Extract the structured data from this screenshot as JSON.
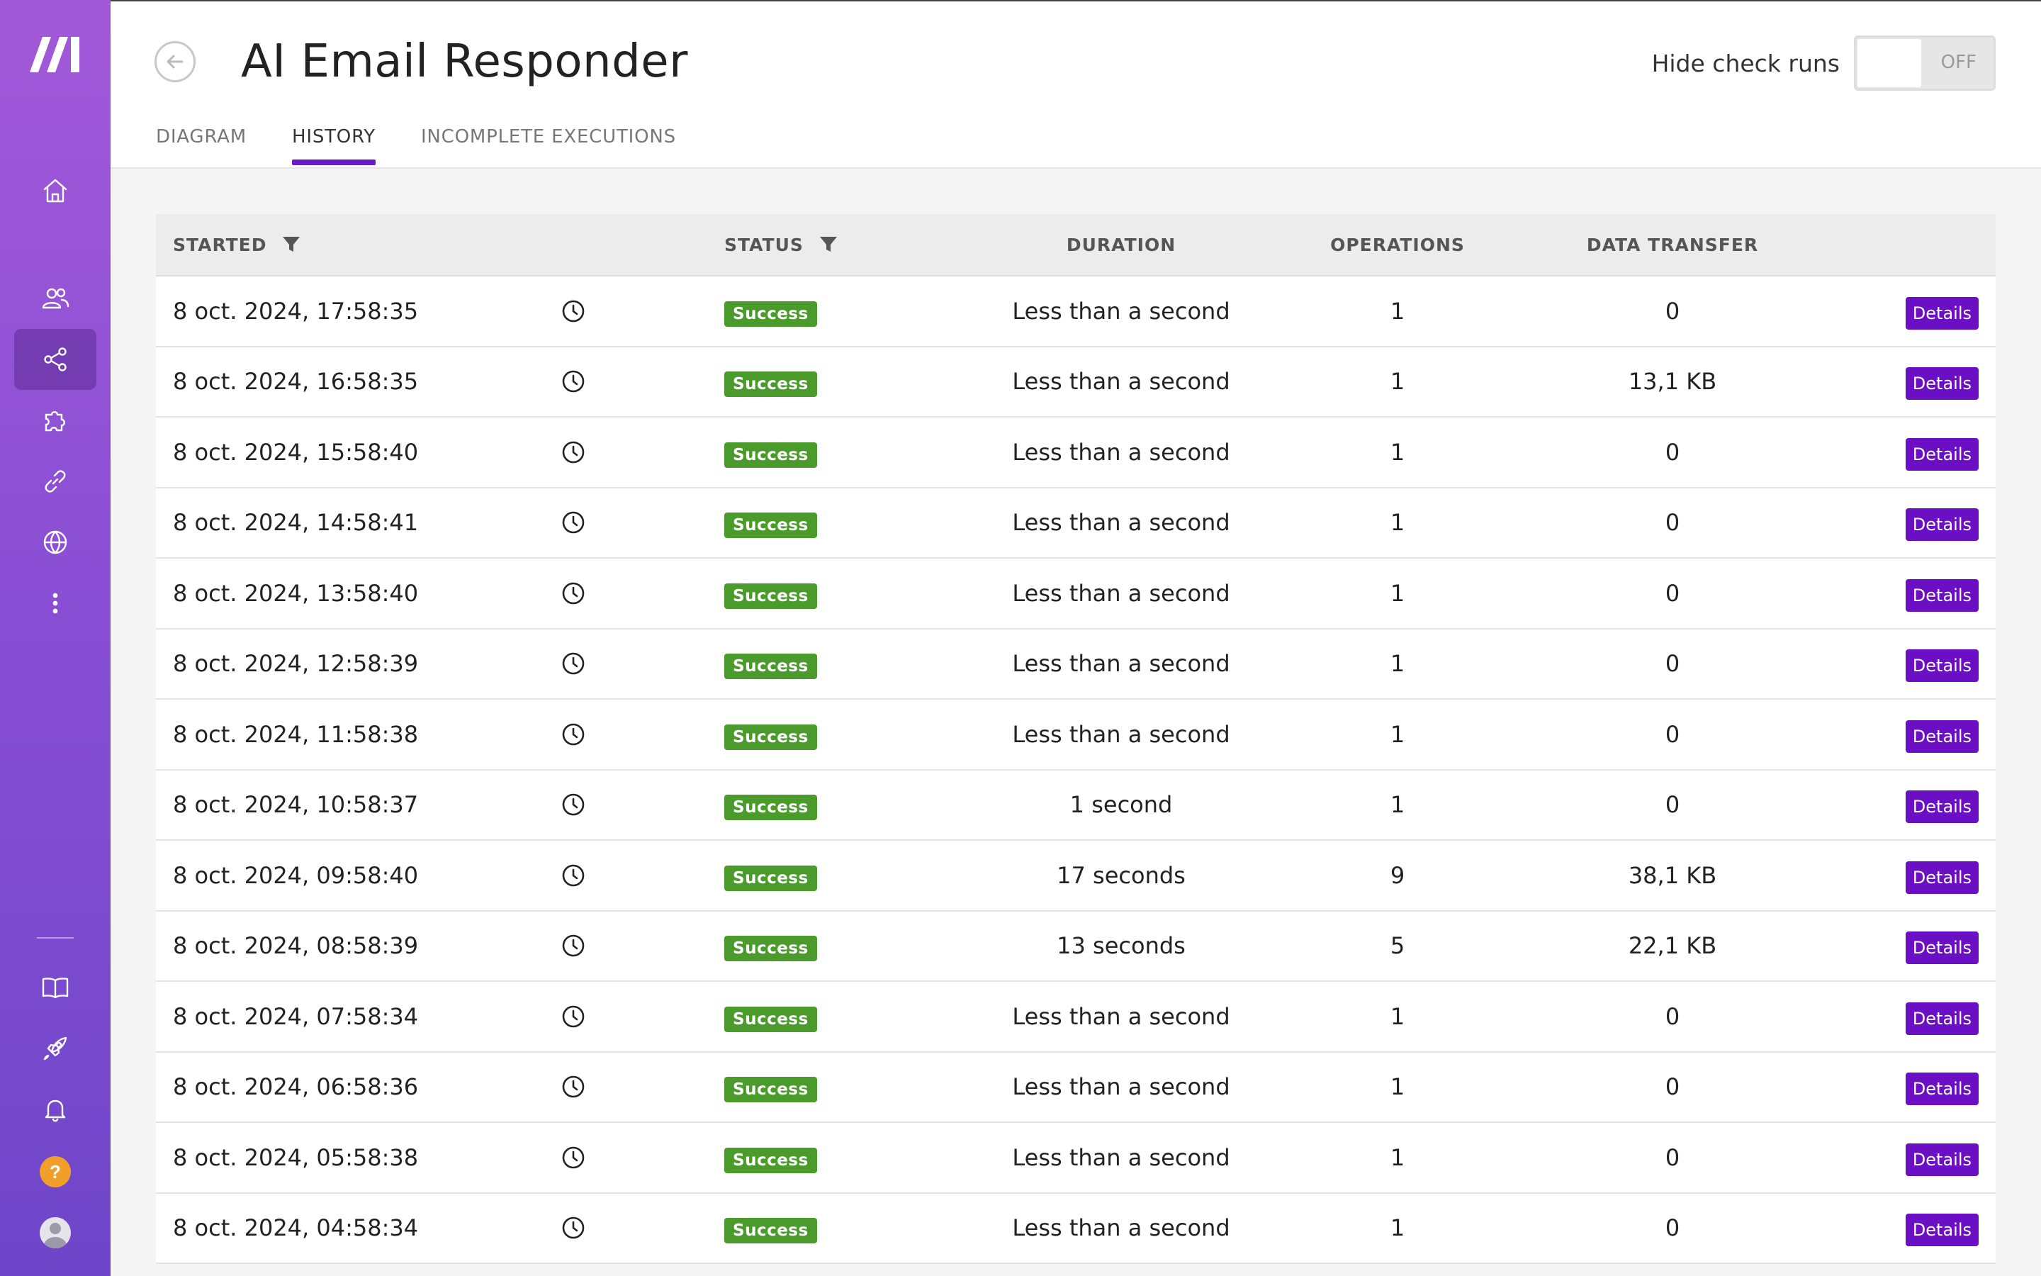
{
  "app": {
    "title": "AI Email Responder",
    "brand_color": "#6a0fc4",
    "success_color": "#4a9a2c"
  },
  "sidebar": {
    "items": [
      {
        "icon": "home-icon",
        "active": false
      },
      {
        "icon": "users-icon",
        "active": false
      },
      {
        "icon": "share-nodes-icon",
        "active": true
      },
      {
        "icon": "puzzle-icon",
        "active": false
      },
      {
        "icon": "link-icon",
        "active": false
      },
      {
        "icon": "globe-icon",
        "active": false
      },
      {
        "icon": "more-vertical-icon",
        "active": false
      },
      {
        "icon": "book-icon",
        "active": false
      },
      {
        "icon": "rocket-icon",
        "active": false
      },
      {
        "icon": "bell-icon",
        "active": false
      },
      {
        "icon": "help-icon",
        "active": false,
        "label": "?"
      },
      {
        "icon": "avatar-icon",
        "active": false
      }
    ]
  },
  "header": {
    "hide_check_runs_label": "Hide check runs",
    "toggle_state": "OFF",
    "tabs": [
      {
        "label": "DIAGRAM",
        "active": false
      },
      {
        "label": "HISTORY",
        "active": true
      },
      {
        "label": "INCOMPLETE EXECUTIONS",
        "active": false
      }
    ]
  },
  "table": {
    "columns": {
      "started": "STARTED",
      "status": "STATUS",
      "duration": "DURATION",
      "operations": "OPERATIONS",
      "data_transfer": "DATA TRANSFER"
    },
    "details_label": "Details",
    "rows": [
      {
        "started": "8 oct. 2024, 17:58:35",
        "status": "Success",
        "duration": "Less than a second",
        "operations": "1",
        "data_transfer": "0"
      },
      {
        "started": "8 oct. 2024, 16:58:35",
        "status": "Success",
        "duration": "Less than a second",
        "operations": "1",
        "data_transfer": "13,1 KB"
      },
      {
        "started": "8 oct. 2024, 15:58:40",
        "status": "Success",
        "duration": "Less than a second",
        "operations": "1",
        "data_transfer": "0"
      },
      {
        "started": "8 oct. 2024, 14:58:41",
        "status": "Success",
        "duration": "Less than a second",
        "operations": "1",
        "data_transfer": "0"
      },
      {
        "started": "8 oct. 2024, 13:58:40",
        "status": "Success",
        "duration": "Less than a second",
        "operations": "1",
        "data_transfer": "0"
      },
      {
        "started": "8 oct. 2024, 12:58:39",
        "status": "Success",
        "duration": "Less than a second",
        "operations": "1",
        "data_transfer": "0"
      },
      {
        "started": "8 oct. 2024, 11:58:38",
        "status": "Success",
        "duration": "Less than a second",
        "operations": "1",
        "data_transfer": "0"
      },
      {
        "started": "8 oct. 2024, 10:58:37",
        "status": "Success",
        "duration": "1 second",
        "operations": "1",
        "data_transfer": "0"
      },
      {
        "started": "8 oct. 2024, 09:58:40",
        "status": "Success",
        "duration": "17 seconds",
        "operations": "9",
        "data_transfer": "38,1 KB"
      },
      {
        "started": "8 oct. 2024, 08:58:39",
        "status": "Success",
        "duration": "13 seconds",
        "operations": "5",
        "data_transfer": "22,1 KB"
      },
      {
        "started": "8 oct. 2024, 07:58:34",
        "status": "Success",
        "duration": "Less than a second",
        "operations": "1",
        "data_transfer": "0"
      },
      {
        "started": "8 oct. 2024, 06:58:36",
        "status": "Success",
        "duration": "Less than a second",
        "operations": "1",
        "data_transfer": "0"
      },
      {
        "started": "8 oct. 2024, 05:58:38",
        "status": "Success",
        "duration": "Less than a second",
        "operations": "1",
        "data_transfer": "0"
      },
      {
        "started": "8 oct. 2024, 04:58:34",
        "status": "Success",
        "duration": "Less than a second",
        "operations": "1",
        "data_transfer": "0"
      }
    ]
  }
}
